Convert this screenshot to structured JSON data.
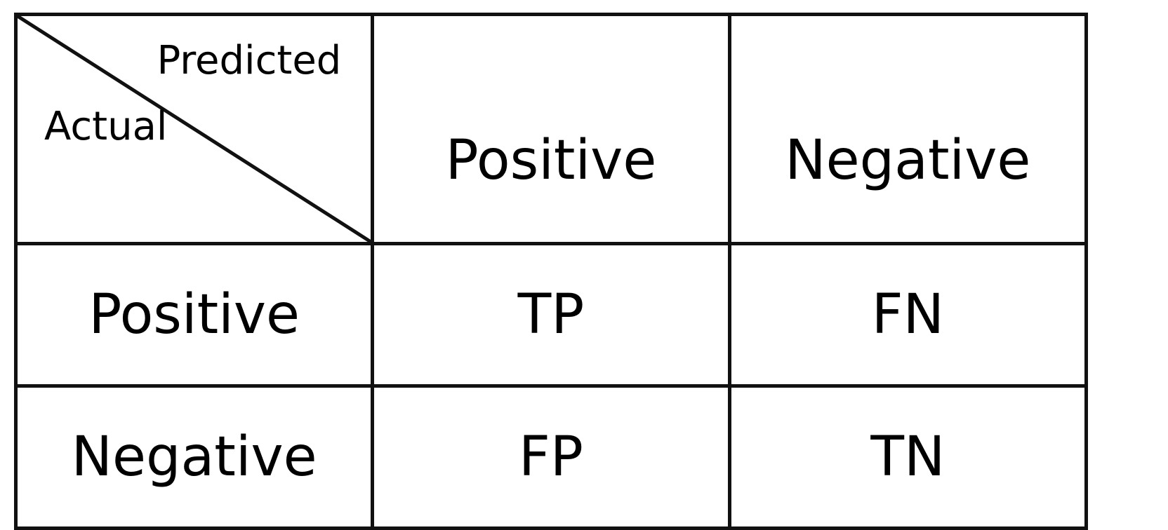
{
  "matrix": {
    "corner": {
      "predicted_label": "Predicted",
      "actual_label": "Actual"
    },
    "columns": [
      "Positive",
      "Negative"
    ],
    "rows": [
      {
        "label": "Positive",
        "cells": [
          "TP",
          "FN"
        ]
      },
      {
        "label": "Negative",
        "cells": [
          "FP",
          "TN"
        ]
      }
    ]
  },
  "colors": {
    "border": "#111111",
    "text": "#000000",
    "background": "#ffffff"
  }
}
